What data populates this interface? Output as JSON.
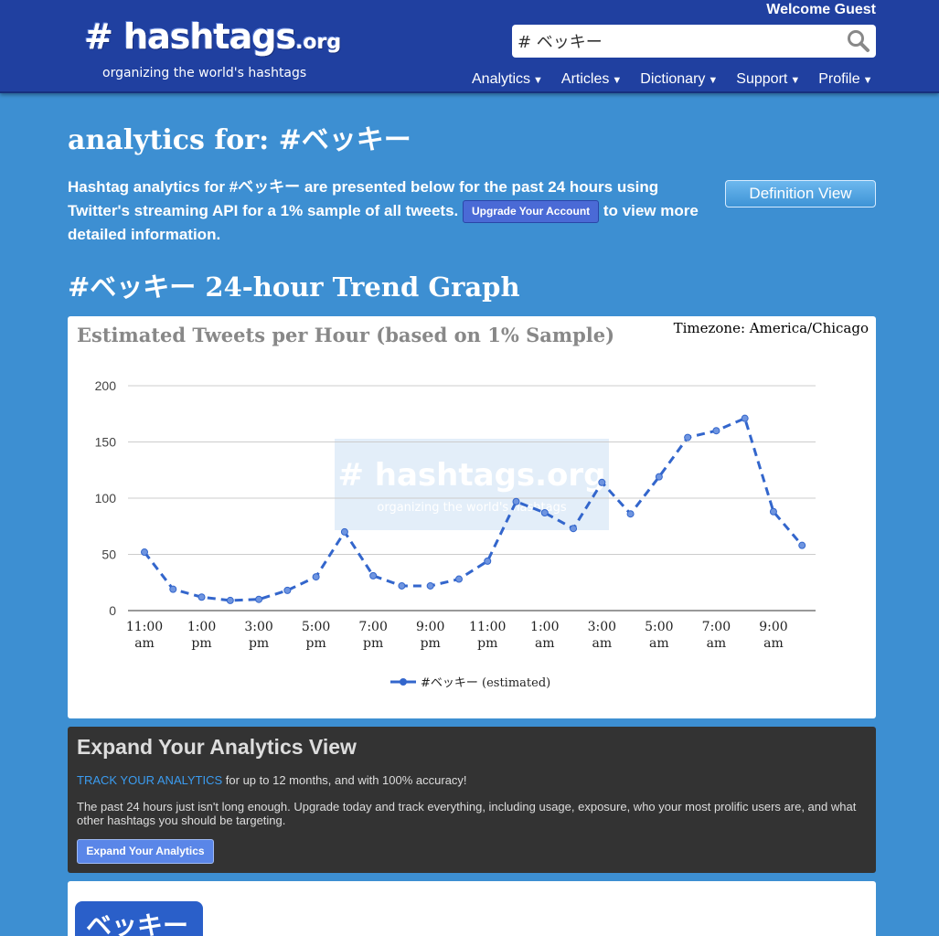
{
  "header": {
    "logo": "# hashtags",
    "logo_domain": ".org",
    "tagline": "organizing the world's hashtags",
    "welcome": "Welcome Guest",
    "search_value": "# ベッキー",
    "nav": [
      {
        "label": "Analytics"
      },
      {
        "label": "Articles"
      },
      {
        "label": "Dictionary"
      },
      {
        "label": "Support"
      },
      {
        "label": "Profile"
      }
    ]
  },
  "main": {
    "title": "analytics for: #ベッキー",
    "intro_before": "Hashtag analytics for #ベッキー are presented below for the past 24 hours using Twitter's streaming API for a 1% sample of all tweets.",
    "upgrade_button": "Upgrade Your Account",
    "intro_after": "to view more detailed information.",
    "definition_button": "Definition View",
    "trend_title": "#ベッキー 24-hour Trend Graph"
  },
  "chart_data": {
    "type": "line",
    "title": "Estimated Tweets per Hour (based on 1% Sample)",
    "timezone": "Timezone: America/Chicago",
    "watermark_logo": "# hashtags.org",
    "watermark_tagline": "organizing the world's hashtags",
    "ylim": [
      0,
      200
    ],
    "yticks": [
      0,
      50,
      100,
      150,
      200
    ],
    "xtick_labels": [
      [
        "11:00",
        "am"
      ],
      [
        "1:00",
        "pm"
      ],
      [
        "3:00",
        "pm"
      ],
      [
        "5:00",
        "pm"
      ],
      [
        "7:00",
        "pm"
      ],
      [
        "9:00",
        "pm"
      ],
      [
        "11:00",
        "pm"
      ],
      [
        "1:00",
        "am"
      ],
      [
        "3:00",
        "am"
      ],
      [
        "5:00",
        "am"
      ],
      [
        "7:00",
        "am"
      ],
      [
        "9:00",
        "am"
      ]
    ],
    "series": [
      {
        "name": "#ベッキー (estimated)",
        "color": "#3366cc",
        "values": [
          52,
          19,
          12,
          9,
          10,
          18,
          30,
          70,
          31,
          22,
          22,
          28,
          44,
          97,
          87,
          73,
          114,
          86,
          119,
          154,
          160,
          171,
          88,
          58
        ]
      }
    ],
    "legend_position": "bottom",
    "grid": true
  },
  "expand": {
    "title": "Expand Your Analytics View",
    "track_link": "TRACK YOUR ANALYTICS",
    "track_rest": " for up to 12 months, and with 100% accuracy!",
    "description": "The past 24 hours just isn't long enough. Upgrade today and track everything, including usage, exposure, who your most prolific users are, and what other hashtags you should be targeting.",
    "button": "Expand Your Analytics"
  },
  "bottom": {
    "badge": "ベッキー"
  }
}
